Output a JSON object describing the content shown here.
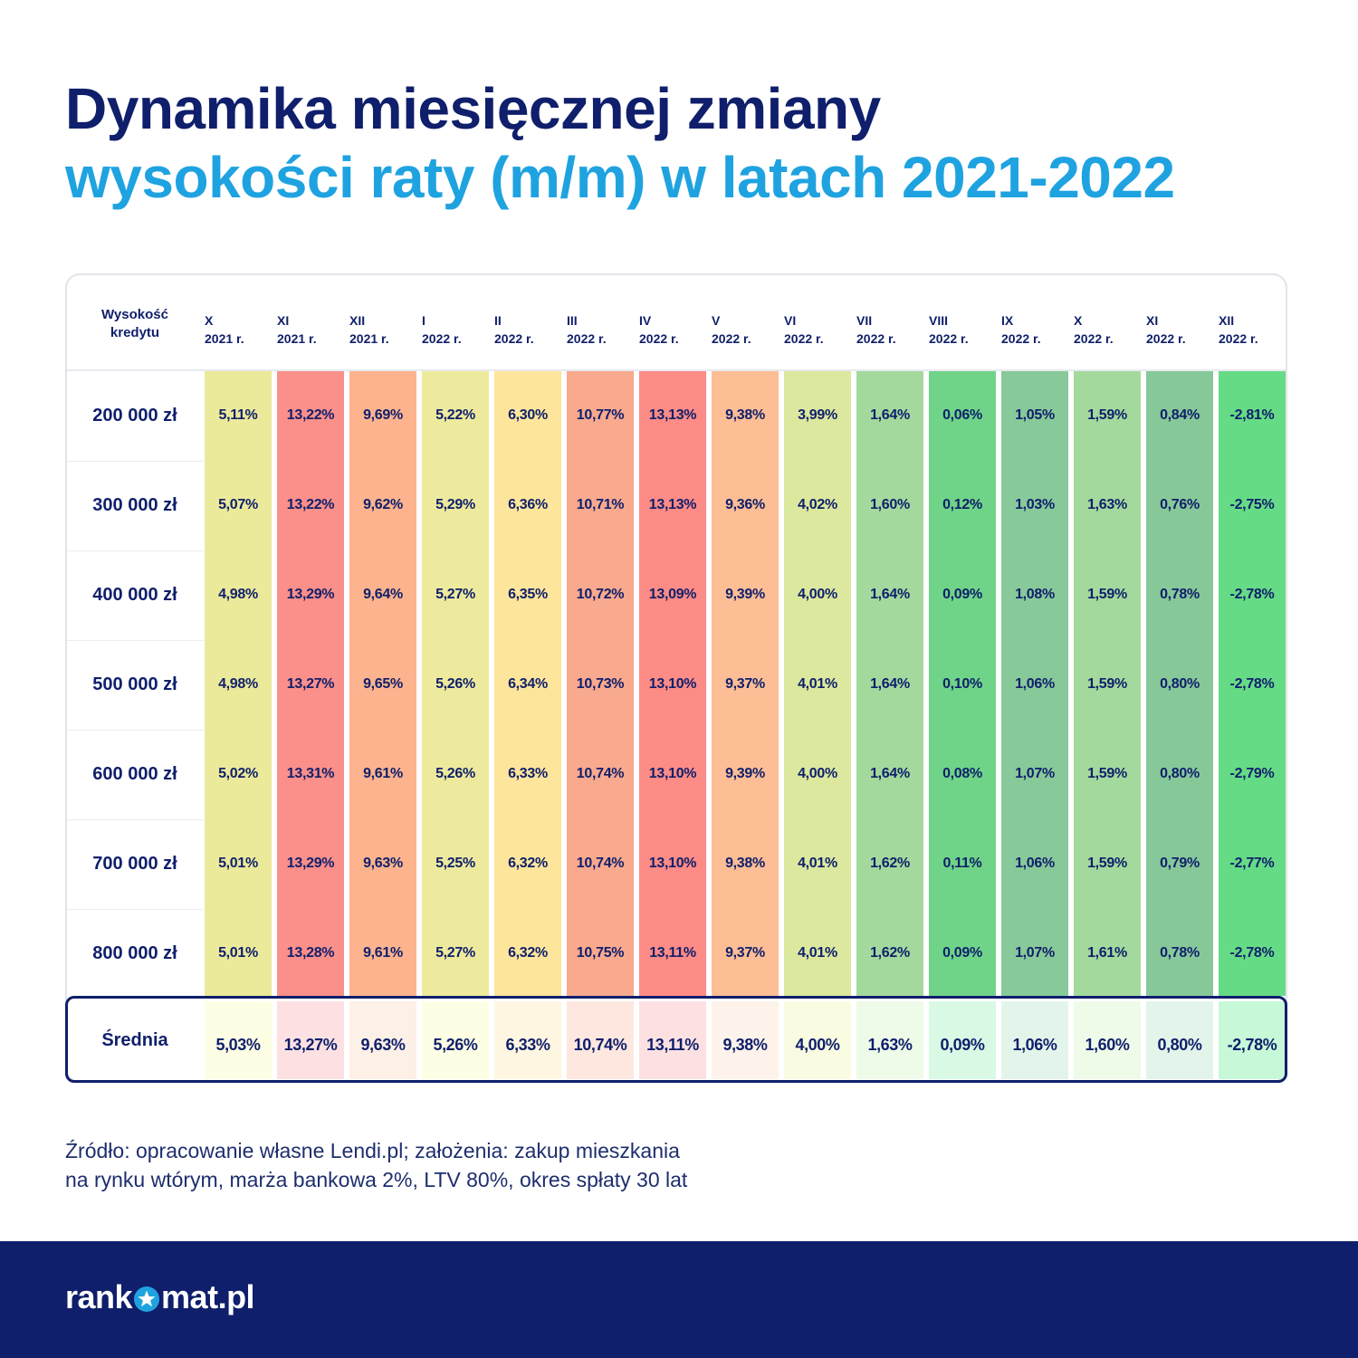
{
  "title": {
    "line1": "Dynamika miesięcznej zmiany",
    "line2": "wysokości raty (m/m) w latach 2021-2022"
  },
  "chart_data": {
    "type": "table",
    "row_header": [
      "Wysokość",
      "kredytu"
    ],
    "columns": [
      {
        "month": "X",
        "year": "2021 r."
      },
      {
        "month": "XI",
        "year": "2021 r."
      },
      {
        "month": "XII",
        "year": "2021 r."
      },
      {
        "month": "I",
        "year": "2022 r."
      },
      {
        "month": "II",
        "year": "2022 r."
      },
      {
        "month": "III",
        "year": "2022 r."
      },
      {
        "month": "IV",
        "year": "2022 r."
      },
      {
        "month": "V",
        "year": "2022 r."
      },
      {
        "month": "VI",
        "year": "2022 r."
      },
      {
        "month": "VII",
        "year": "2022 r."
      },
      {
        "month": "VIII",
        "year": "2022 r."
      },
      {
        "month": "IX",
        "year": "2022 r."
      },
      {
        "month": "X",
        "year": "2022 r."
      },
      {
        "month": "XI",
        "year": "2022 r."
      },
      {
        "month": "XII",
        "year": "2022 r."
      }
    ],
    "rows": [
      {
        "label": "200 000 zł",
        "values": [
          "5,11%",
          "13,22%",
          "9,69%",
          "5,22%",
          "6,30%",
          "10,77%",
          "13,13%",
          "9,38%",
          "3,99%",
          "1,64%",
          "0,06%",
          "1,05%",
          "1,59%",
          "0,84%",
          "-2,81%"
        ]
      },
      {
        "label": "300 000 zł",
        "values": [
          "5,07%",
          "13,22%",
          "9,62%",
          "5,29%",
          "6,36%",
          "10,71%",
          "13,13%",
          "9,36%",
          "4,02%",
          "1,60%",
          "0,12%",
          "1,03%",
          "1,63%",
          "0,76%",
          "-2,75%"
        ]
      },
      {
        "label": "400 000 zł",
        "values": [
          "4,98%",
          "13,29%",
          "9,64%",
          "5,27%",
          "6,35%",
          "10,72%",
          "13,09%",
          "9,39%",
          "4,00%",
          "1,64%",
          "0,09%",
          "1,08%",
          "1,59%",
          "0,78%",
          "-2,78%"
        ]
      },
      {
        "label": "500 000 zł",
        "values": [
          "4,98%",
          "13,27%",
          "9,65%",
          "5,26%",
          "6,34%",
          "10,73%",
          "13,10%",
          "9,37%",
          "4,01%",
          "1,64%",
          "0,10%",
          "1,06%",
          "1,59%",
          "0,80%",
          "-2,78%"
        ]
      },
      {
        "label": "600 000 zł",
        "values": [
          "5,02%",
          "13,31%",
          "9,61%",
          "5,26%",
          "6,33%",
          "10,74%",
          "13,10%",
          "9,39%",
          "4,00%",
          "1,64%",
          "0,08%",
          "1,07%",
          "1,59%",
          "0,80%",
          "-2,79%"
        ]
      },
      {
        "label": "700 000 zł",
        "values": [
          "5,01%",
          "13,29%",
          "9,63%",
          "5,25%",
          "6,32%",
          "10,74%",
          "13,10%",
          "9,38%",
          "4,01%",
          "1,62%",
          "0,11%",
          "1,06%",
          "1,59%",
          "0,79%",
          "-2,77%"
        ]
      },
      {
        "label": "800 000 zł",
        "values": [
          "5,01%",
          "13,28%",
          "9,61%",
          "5,27%",
          "6,32%",
          "10,75%",
          "13,11%",
          "9,37%",
          "4,01%",
          "1,62%",
          "0,09%",
          "1,07%",
          "1,61%",
          "0,78%",
          "-2,78%"
        ]
      }
    ],
    "average": {
      "label": "Średnia",
      "values": [
        "5,03%",
        "13,27%",
        "9,63%",
        "5,26%",
        "6,33%",
        "10,74%",
        "13,11%",
        "9,38%",
        "4,00%",
        "1,63%",
        "0,09%",
        "1,06%",
        "1,60%",
        "0,80%",
        "-2,78%"
      ]
    },
    "column_colors": [
      "#ebe99a",
      "#fb8f8a",
      "#fcb38e",
      "#eeea9d",
      "#fde59b",
      "#f9a98e",
      "#fd8b86",
      "#fdbd95",
      "#dbe89e",
      "#a3d99d",
      "#6fd488",
      "#88c999",
      "#a3d99d",
      "#87c899",
      "#66db86"
    ],
    "average_colors": [
      "#fefee4",
      "#fde1e2",
      "#fdf0e6",
      "#fefee4",
      "#fef6e1",
      "#fde7df",
      "#fde1e2",
      "#fef3ea",
      "#f9fce1",
      "#eefbe9",
      "#d9f9e4",
      "#e3f5ea",
      "#eefbe9",
      "#e3f5ea",
      "#c7f9d8"
    ]
  },
  "source": {
    "line1": "Źródło: opracowanie własne Lendi.pl; założenia: zakup mieszkania",
    "line2": "na rynku wtórym, marża bankowa 2%, LTV 80%, okres spłaty 30 lat"
  },
  "footer": {
    "logo_before": "rank",
    "logo_after": "mat.pl",
    "logo_icon": "star-icon",
    "background": "#0f1f6b"
  }
}
